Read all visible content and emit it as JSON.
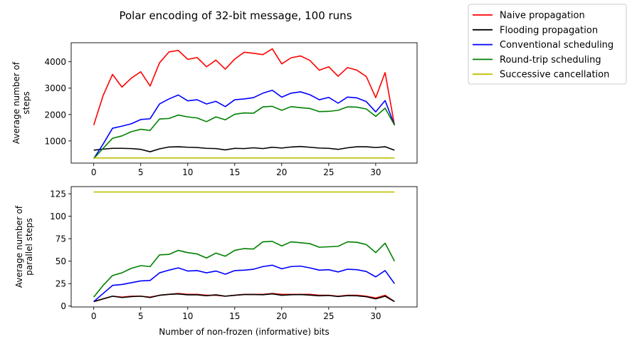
{
  "title": "Polar encoding of 32-bit message, 100 runs",
  "colors": {
    "naive": "#ff0000",
    "flooding": "#000000",
    "conventional": "#0000ff",
    "roundtrip": "#008000",
    "successive": "#bfbf00"
  },
  "legend": {
    "placement": "upper right outside",
    "entries": [
      {
        "label": "Naive propagation",
        "color": "#ff0000"
      },
      {
        "label": "Flooding propagation",
        "color": "#000000"
      },
      {
        "label": "Conventional scheduling",
        "color": "#0000ff"
      },
      {
        "label": "Round-trip scheduling",
        "color": "#008000"
      },
      {
        "label": "Successive cancellation",
        "color": "#bfbf00"
      }
    ]
  },
  "chart_data": [
    {
      "type": "line",
      "ylabel": "Average number of\nsteps",
      "xlabel": "",
      "xlim": [
        -2.4,
        34.4
      ],
      "ylim": [
        160,
        4720
      ],
      "xticks": [
        0,
        5,
        10,
        15,
        20,
        25,
        30
      ],
      "yticks": [
        1000,
        2000,
        3000,
        4000
      ],
      "x": [
        0,
        1,
        2,
        3,
        4,
        5,
        6,
        7,
        8,
        9,
        10,
        11,
        12,
        13,
        14,
        15,
        16,
        17,
        18,
        19,
        20,
        21,
        22,
        23,
        24,
        25,
        26,
        27,
        28,
        29,
        30,
        31,
        32
      ],
      "series": [
        {
          "name": "Naive propagation",
          "color": "#ff0000",
          "values": [
            1600,
            2720,
            3520,
            3040,
            3380,
            3620,
            3080,
            3960,
            4370,
            4430,
            4090,
            4160,
            3810,
            4060,
            3720,
            4100,
            4360,
            4320,
            4270,
            4490,
            3920,
            4150,
            4220,
            4050,
            3680,
            3810,
            3450,
            3780,
            3680,
            3440,
            2640,
            3590,
            1590
          ]
        },
        {
          "name": "Flooding propagation",
          "color": "#000000",
          "values": [
            650,
            690,
            720,
            720,
            710,
            680,
            590,
            700,
            770,
            780,
            760,
            750,
            720,
            710,
            660,
            720,
            710,
            740,
            710,
            760,
            730,
            770,
            790,
            760,
            730,
            720,
            680,
            740,
            780,
            780,
            750,
            780,
            650
          ]
        },
        {
          "name": "Conventional scheduling",
          "color": "#0000ff",
          "values": [
            330,
            880,
            1480,
            1560,
            1650,
            1810,
            1840,
            2400,
            2590,
            2740,
            2520,
            2560,
            2400,
            2500,
            2300,
            2560,
            2590,
            2640,
            2810,
            2920,
            2660,
            2810,
            2860,
            2750,
            2560,
            2650,
            2430,
            2660,
            2630,
            2490,
            2100,
            2530,
            1600
          ]
        },
        {
          "name": "Round-trip scheduling",
          "color": "#008000",
          "values": [
            330,
            720,
            1100,
            1190,
            1350,
            1440,
            1400,
            1830,
            1850,
            1980,
            1910,
            1870,
            1730,
            1910,
            1800,
            2010,
            2060,
            2050,
            2290,
            2310,
            2160,
            2300,
            2260,
            2230,
            2110,
            2120,
            2160,
            2290,
            2280,
            2210,
            1930,
            2240,
            1600
          ]
        },
        {
          "name": "Successive cancellation",
          "color": "#bfbf00",
          "values": [
            355,
            355,
            355,
            355,
            355,
            355,
            355,
            355,
            355,
            355,
            355,
            355,
            355,
            355,
            355,
            355,
            355,
            355,
            355,
            355,
            355,
            355,
            355,
            355,
            355,
            355,
            355,
            355,
            355,
            355,
            355,
            355,
            355
          ]
        }
      ]
    },
    {
      "type": "line",
      "ylabel": "Average number of\nparallel steps",
      "xlabel": "Number of non-frozen (informative) bits",
      "xlim": [
        -2.4,
        34.4
      ],
      "ylim": [
        -1,
        133
      ],
      "xticks": [
        0,
        5,
        10,
        15,
        20,
        25,
        30
      ],
      "yticks": [
        0,
        25,
        50,
        75,
        100,
        125
      ],
      "x": [
        0,
        1,
        2,
        3,
        4,
        5,
        6,
        7,
        8,
        9,
        10,
        11,
        12,
        13,
        14,
        15,
        16,
        17,
        18,
        19,
        20,
        21,
        22,
        23,
        24,
        25,
        26,
        27,
        28,
        29,
        30,
        31,
        32
      ],
      "series": [
        {
          "name": "Naive propagation",
          "color": "#ff0000",
          "values": [
            5,
            8,
            11,
            10,
            11,
            11,
            10,
            12,
            13,
            14,
            13,
            13,
            12,
            12,
            11,
            12,
            13,
            13,
            13,
            14,
            13,
            13,
            13,
            13,
            12,
            12,
            11,
            12,
            12,
            11,
            9,
            12,
            5
          ]
        },
        {
          "name": "Flooding propagation",
          "color": "#000000",
          "values": [
            5,
            8,
            11,
            9.5,
            10.5,
            11,
            9.5,
            12,
            13,
            13.5,
            12.5,
            12.5,
            11.5,
            12.5,
            11,
            12,
            12.8,
            12.8,
            12.6,
            13.6,
            12,
            12.6,
            12.8,
            12.2,
            11.4,
            11.8,
            10.6,
            11.6,
            11.4,
            10.4,
            8,
            11,
            5
          ]
        },
        {
          "name": "Conventional scheduling",
          "color": "#0000ff",
          "values": [
            5,
            14,
            23,
            24,
            26,
            28,
            28.5,
            37,
            40,
            42.5,
            39,
            39.5,
            37,
            39,
            35.5,
            39.5,
            40,
            41,
            44,
            45.5,
            41.5,
            44,
            44.5,
            42.5,
            40,
            40.5,
            38,
            41,
            40.5,
            38.5,
            32.5,
            39.5,
            25
          ]
        },
        {
          "name": "Round-trip scheduling",
          "color": "#008000",
          "values": [
            10,
            23,
            34,
            37,
            42,
            45,
            44,
            57,
            57.5,
            62,
            59.5,
            58,
            53.5,
            59,
            55.5,
            62,
            64,
            63.5,
            71.5,
            72,
            67,
            71.5,
            70.5,
            69.5,
            65.5,
            66,
            66.5,
            71.5,
            71,
            68.5,
            59.5,
            70,
            50
          ]
        },
        {
          "name": "Successive cancellation",
          "color": "#bfbf00",
          "values": [
            127,
            127,
            127,
            127,
            127,
            127,
            127,
            127,
            127,
            127,
            127,
            127,
            127,
            127,
            127,
            127,
            127,
            127,
            127,
            127,
            127,
            127,
            127,
            127,
            127,
            127,
            127,
            127,
            127,
            127,
            127,
            127,
            127
          ]
        }
      ]
    }
  ]
}
